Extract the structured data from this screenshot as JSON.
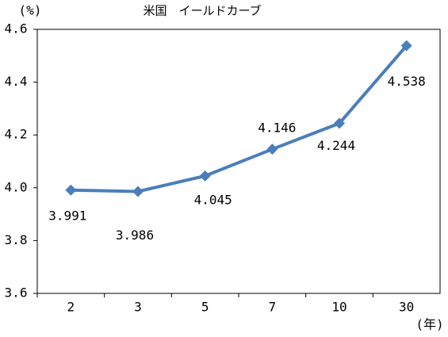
{
  "chart_data": {
    "type": "line",
    "title": "米国　イールドカーブ",
    "y_label": "(%)",
    "x_label": "(年)",
    "categories": [
      "2",
      "3",
      "5",
      "7",
      "10",
      "30"
    ],
    "series": [
      {
        "name": "イールドカーブ",
        "color": "#4a7ebb",
        "values": [
          3.991,
          3.986,
          4.045,
          4.146,
          4.244,
          4.538
        ]
      }
    ],
    "ylim": [
      3.6,
      4.6
    ],
    "yticks": [
      3.6,
      3.8,
      {
        "value": 4,
        "label": "4.0"
      },
      4.2,
      4.4,
      4.6
    ],
    "grid": false,
    "legend": false
  }
}
